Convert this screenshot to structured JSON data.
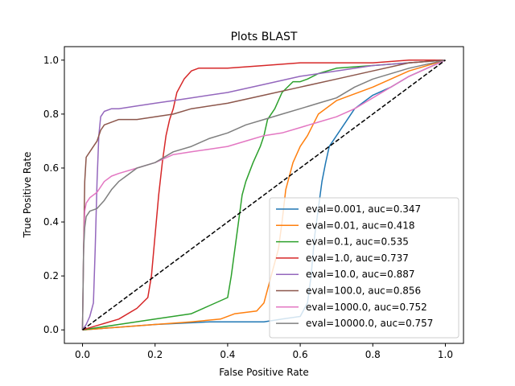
{
  "chart_data": {
    "type": "line",
    "title": "Plots BLAST",
    "xlabel": "False Positive Rate",
    "ylabel": "True Positive Rate",
    "xlim": [
      -0.05,
      1.05
    ],
    "ylim": [
      -0.05,
      1.05
    ],
    "xticks": [
      0.0,
      0.2,
      0.4,
      0.6,
      0.8,
      1.0
    ],
    "yticks": [
      0.0,
      0.2,
      0.4,
      0.6,
      0.8,
      1.0
    ],
    "xtick_labels": [
      "0.0",
      "0.2",
      "0.4",
      "0.6",
      "0.8",
      "1.0"
    ],
    "ytick_labels": [
      "0.0",
      "0.2",
      "0.4",
      "0.6",
      "0.8",
      "1.0"
    ],
    "grid": false,
    "legend_position": "lower right",
    "diagonal": {
      "x": [
        0,
        1
      ],
      "y": [
        0,
        1
      ],
      "color": "#000000",
      "style": "dashed"
    },
    "series": [
      {
        "name": "eval=0.001, auc=0.347",
        "color": "#1f77b4",
        "x": [
          0.0,
          0.1,
          0.2,
          0.35,
          0.45,
          0.5,
          0.55,
          0.6,
          0.62,
          0.63,
          0.64,
          0.65,
          0.66,
          0.67,
          0.68,
          0.7,
          0.72,
          0.75,
          0.8,
          0.85,
          0.9,
          0.95,
          1.0
        ],
        "y": [
          0.0,
          0.01,
          0.02,
          0.03,
          0.03,
          0.03,
          0.04,
          0.05,
          0.1,
          0.2,
          0.35,
          0.45,
          0.55,
          0.62,
          0.68,
          0.72,
          0.76,
          0.82,
          0.87,
          0.9,
          0.94,
          0.97,
          1.0
        ]
      },
      {
        "name": "eval=0.01, auc=0.418",
        "color": "#ff7f0e",
        "x": [
          0.0,
          0.1,
          0.2,
          0.3,
          0.38,
          0.42,
          0.48,
          0.5,
          0.51,
          0.52,
          0.53,
          0.54,
          0.55,
          0.56,
          0.58,
          0.6,
          0.62,
          0.65,
          0.7,
          0.8,
          0.9,
          1.0
        ],
        "y": [
          0.0,
          0.01,
          0.02,
          0.03,
          0.04,
          0.06,
          0.07,
          0.1,
          0.15,
          0.2,
          0.25,
          0.3,
          0.4,
          0.52,
          0.62,
          0.68,
          0.72,
          0.8,
          0.85,
          0.9,
          0.96,
          1.0
        ]
      },
      {
        "name": "eval=0.1, auc=0.535",
        "color": "#2ca02c",
        "x": [
          0.0,
          0.1,
          0.2,
          0.3,
          0.35,
          0.4,
          0.41,
          0.42,
          0.43,
          0.44,
          0.45,
          0.47,
          0.49,
          0.5,
          0.51,
          0.53,
          0.55,
          0.58,
          0.6,
          0.62,
          0.65,
          0.7,
          0.8,
          0.9,
          1.0
        ],
        "y": [
          0.0,
          0.02,
          0.04,
          0.06,
          0.09,
          0.12,
          0.2,
          0.3,
          0.4,
          0.5,
          0.55,
          0.62,
          0.68,
          0.72,
          0.78,
          0.82,
          0.88,
          0.92,
          0.92,
          0.93,
          0.95,
          0.97,
          0.98,
          0.99,
          1.0
        ]
      },
      {
        "name": "eval=1.0, auc=0.737",
        "color": "#d62728",
        "x": [
          0.0,
          0.1,
          0.15,
          0.18,
          0.19,
          0.2,
          0.21,
          0.22,
          0.23,
          0.24,
          0.25,
          0.26,
          0.28,
          0.3,
          0.32,
          0.35,
          0.4,
          0.5,
          0.6,
          0.7,
          0.8,
          0.9,
          1.0
        ],
        "y": [
          0.0,
          0.04,
          0.08,
          0.12,
          0.2,
          0.35,
          0.5,
          0.62,
          0.72,
          0.78,
          0.82,
          0.88,
          0.93,
          0.96,
          0.97,
          0.97,
          0.97,
          0.98,
          0.99,
          0.99,
          0.99,
          1.0,
          1.0
        ]
      },
      {
        "name": "eval=10.0, auc=0.887",
        "color": "#9467bd",
        "x": [
          0.0,
          0.01,
          0.02,
          0.03,
          0.035,
          0.04,
          0.045,
          0.05,
          0.06,
          0.08,
          0.1,
          0.15,
          0.2,
          0.25,
          0.3,
          0.4,
          0.5,
          0.6,
          0.7,
          0.8,
          0.9,
          1.0
        ],
        "y": [
          0.0,
          0.02,
          0.05,
          0.1,
          0.3,
          0.55,
          0.72,
          0.79,
          0.81,
          0.82,
          0.82,
          0.83,
          0.84,
          0.85,
          0.86,
          0.88,
          0.91,
          0.94,
          0.96,
          0.98,
          0.99,
          1.0
        ]
      },
      {
        "name": "eval=100.0, auc=0.856",
        "color": "#8c564b",
        "x": [
          0.0,
          0.003,
          0.006,
          0.01,
          0.02,
          0.03,
          0.04,
          0.05,
          0.06,
          0.08,
          0.1,
          0.15,
          0.2,
          0.25,
          0.3,
          0.4,
          0.5,
          0.6,
          0.7,
          0.8,
          0.9,
          1.0
        ],
        "y": [
          0.0,
          0.3,
          0.55,
          0.64,
          0.66,
          0.68,
          0.7,
          0.74,
          0.76,
          0.77,
          0.78,
          0.78,
          0.79,
          0.8,
          0.82,
          0.84,
          0.87,
          0.9,
          0.93,
          0.96,
          0.99,
          1.0
        ]
      },
      {
        "name": "eval=1000.0, auc=0.752",
        "color": "#e377c2",
        "x": [
          0.0,
          0.003,
          0.006,
          0.01,
          0.02,
          0.04,
          0.06,
          0.08,
          0.1,
          0.15,
          0.2,
          0.25,
          0.3,
          0.35,
          0.4,
          0.45,
          0.5,
          0.55,
          0.6,
          0.65,
          0.7,
          0.75,
          0.8,
          0.9,
          1.0
        ],
        "y": [
          0.0,
          0.3,
          0.44,
          0.47,
          0.49,
          0.51,
          0.55,
          0.57,
          0.58,
          0.6,
          0.62,
          0.65,
          0.66,
          0.67,
          0.68,
          0.7,
          0.72,
          0.73,
          0.75,
          0.77,
          0.79,
          0.82,
          0.86,
          0.94,
          1.0
        ]
      },
      {
        "name": "eval=10000.0, auc=0.757",
        "color": "#7f7f7f",
        "x": [
          0.0,
          0.003,
          0.006,
          0.01,
          0.02,
          0.04,
          0.06,
          0.08,
          0.1,
          0.12,
          0.15,
          0.2,
          0.25,
          0.3,
          0.35,
          0.4,
          0.45,
          0.5,
          0.55,
          0.6,
          0.65,
          0.7,
          0.75,
          0.8,
          0.9,
          1.0
        ],
        "y": [
          0.0,
          0.3,
          0.38,
          0.42,
          0.44,
          0.45,
          0.48,
          0.52,
          0.55,
          0.57,
          0.6,
          0.62,
          0.66,
          0.68,
          0.71,
          0.73,
          0.76,
          0.78,
          0.8,
          0.82,
          0.84,
          0.86,
          0.9,
          0.93,
          0.97,
          1.0
        ]
      }
    ]
  }
}
